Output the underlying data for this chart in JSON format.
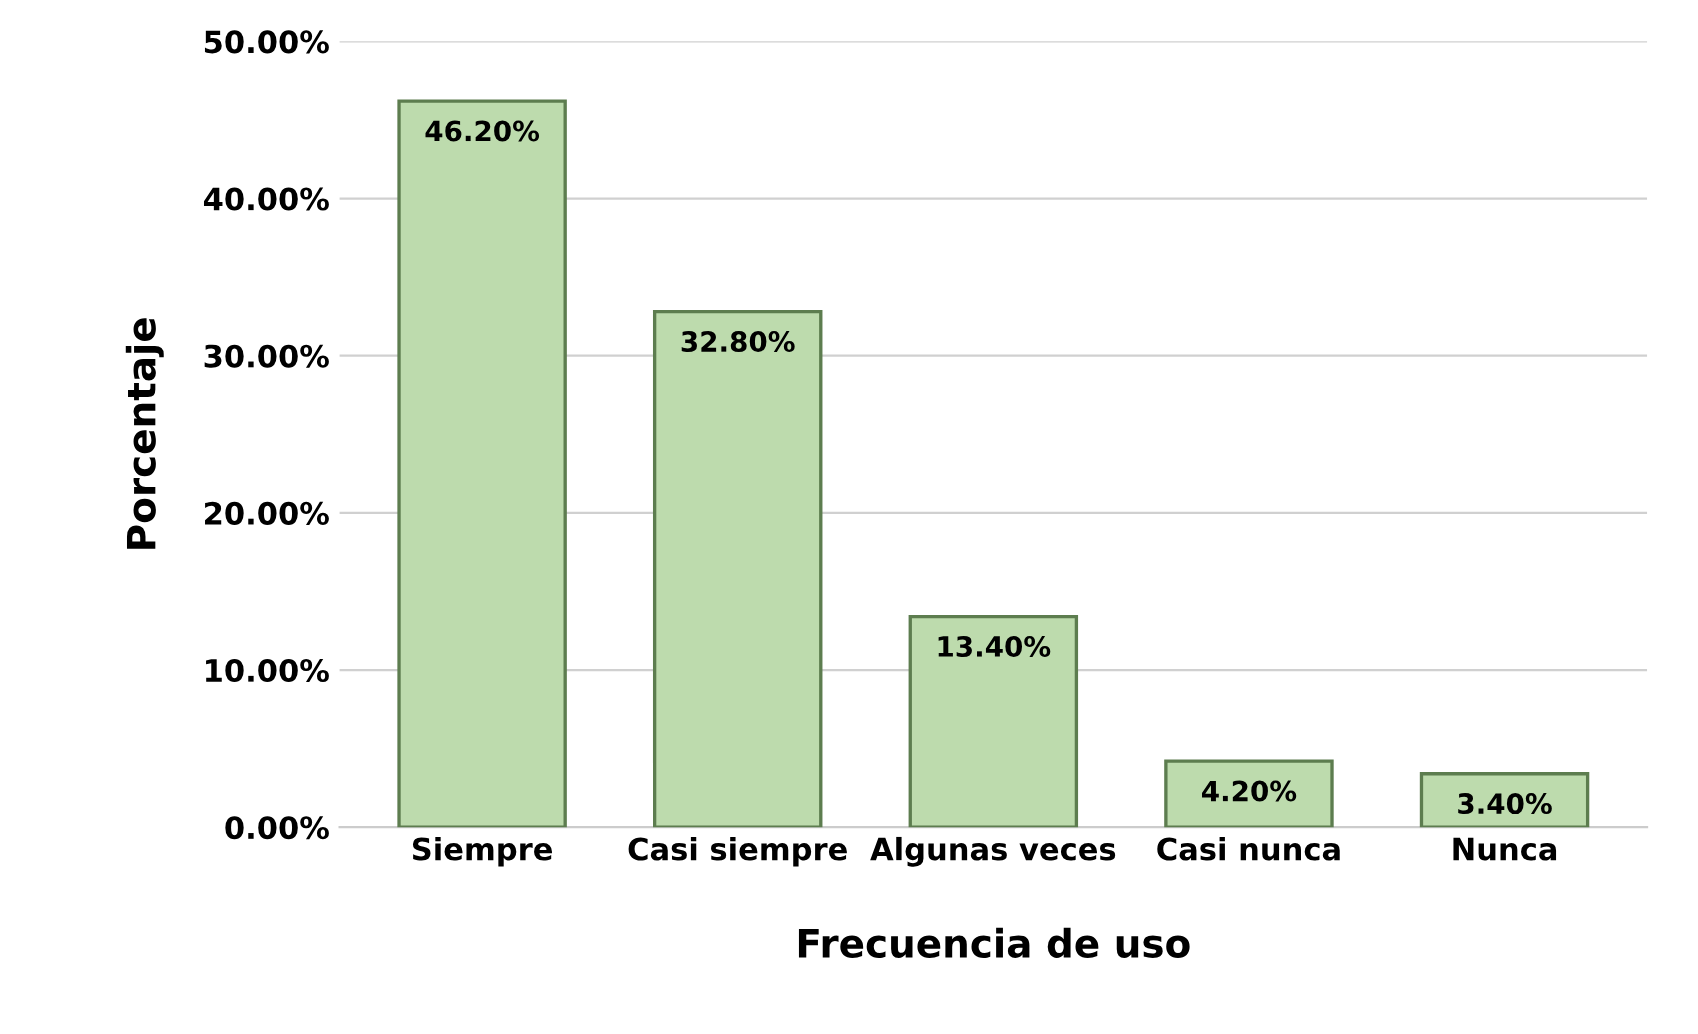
{
  "chart_data": {
    "type": "bar",
    "xlabel": "Frecuencia de uso",
    "ylabel": "Porcentaje",
    "categories": [
      "Siempre",
      "Casi siempre",
      "Algunas veces",
      "Casi nunca",
      "Nunca"
    ],
    "values": [
      46.2,
      32.8,
      13.4,
      4.2,
      3.4
    ],
    "value_labels": [
      "46.20%",
      "32.80%",
      "13.40%",
      "4.20%",
      "3.40%"
    ],
    "color": "#bddbad",
    "ylim": [
      0,
      50
    ],
    "yticks": [
      {
        "value": 0,
        "label": "0.00%"
      },
      {
        "value": 10,
        "label": "10.00%"
      },
      {
        "value": 20,
        "label": "20.00%"
      },
      {
        "value": 30,
        "label": "30.00%"
      },
      {
        "value": 40,
        "label": "40.00%"
      },
      {
        "value": 50,
        "label": "50.00%"
      }
    ],
    "grid": "y",
    "legend": false
  }
}
